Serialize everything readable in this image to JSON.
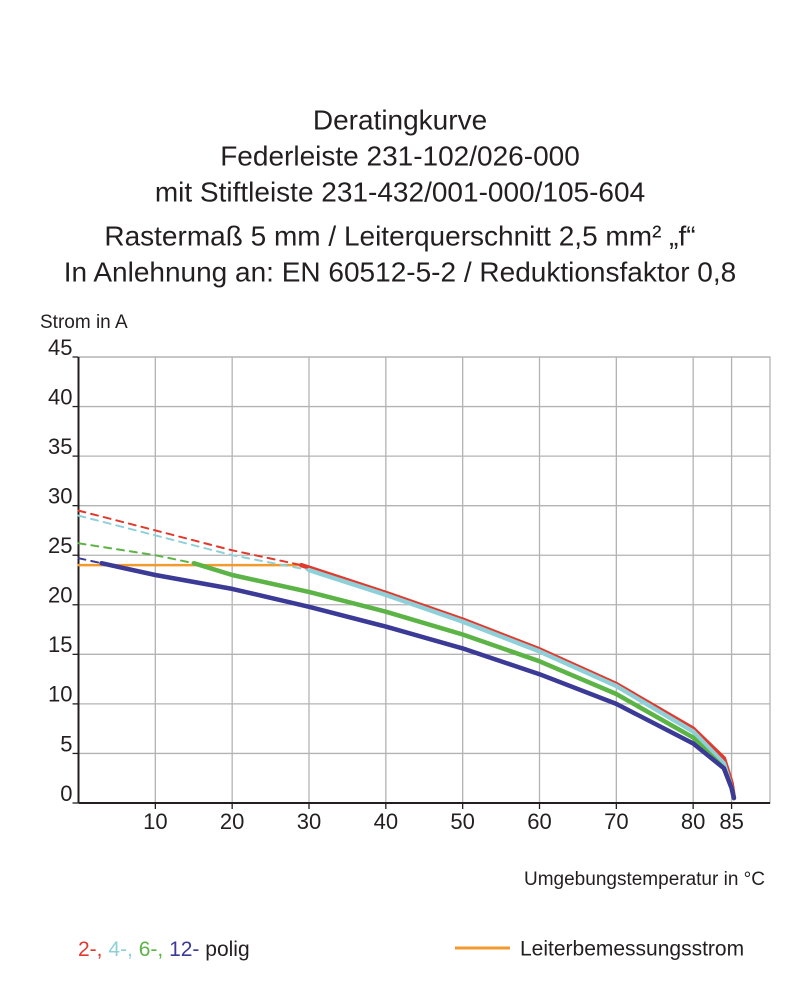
{
  "chart_data": {
    "type": "line",
    "title": [
      "Deratingkurve",
      "Federleiste 231-102/026-000",
      "mit Stiftleiste 231-432/001-000/105-604",
      "Rastermaß 5 mm / Leiterquerschnitt 2,5 mm² „f“",
      "In Anlehnung an: EN 60512-5-2 / Reduktionsfaktor 0,8"
    ],
    "y_label": "Strom in A",
    "x_label": "Umgebungstemperatur in °C",
    "xlim": [
      0,
      90
    ],
    "ylim": [
      0,
      45
    ],
    "xticks": [
      10,
      20,
      30,
      40,
      50,
      60,
      70,
      80,
      85
    ],
    "yticks": [
      0,
      5,
      10,
      15,
      20,
      25,
      30,
      35,
      40,
      45
    ],
    "grid": true,
    "legend_suffix": "polig",
    "series": [
      {
        "name": "2-,",
        "color": "#e03a2e",
        "dashed_to": 29,
        "x": [
          0,
          10,
          20,
          29,
          40,
          50,
          60,
          70,
          80,
          84,
          85,
          85.3
        ],
        "values": [
          29.5,
          27.5,
          25.5,
          24,
          21.2,
          18.5,
          15.5,
          12,
          7.5,
          4.5,
          2,
          0.5
        ]
      },
      {
        "name": "4-,",
        "color": "#8fd0d8",
        "dashed_to": 30,
        "x": [
          0,
          10,
          20,
          30,
          40,
          50,
          60,
          70,
          80,
          84,
          85,
          85.3
        ],
        "values": [
          29,
          27,
          25,
          23.5,
          21,
          18.3,
          15.3,
          11.8,
          7.2,
          4,
          1.5,
          0.5
        ]
      },
      {
        "name": "6-,",
        "color": "#5cb446",
        "dashed_to": 15,
        "x": [
          0,
          10,
          15,
          20,
          30,
          40,
          50,
          60,
          70,
          80,
          84,
          85,
          85.3
        ],
        "values": [
          26.2,
          25,
          24.2,
          23,
          21.3,
          19.3,
          17,
          14.3,
          11,
          6.6,
          3.5,
          1.5,
          0.5
        ]
      },
      {
        "name": "12-",
        "color": "#3b3a96",
        "dashed_to": 3,
        "x": [
          0,
          3,
          10,
          20,
          30,
          40,
          50,
          60,
          70,
          80,
          84,
          85,
          85.3
        ],
        "values": [
          24.7,
          24.2,
          23,
          21.6,
          19.8,
          17.8,
          15.6,
          13,
          10,
          6,
          3.5,
          1.5,
          0.5
        ]
      },
      {
        "name": "Leiterbemessungsstrom",
        "color": "#f29a2e",
        "x": [
          0,
          29
        ],
        "values": [
          24,
          24
        ]
      }
    ]
  }
}
